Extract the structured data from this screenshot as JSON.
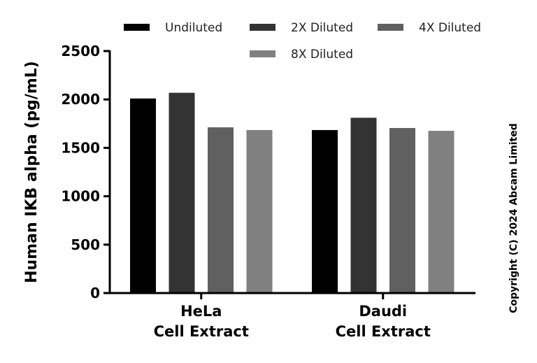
{
  "chart_data": {
    "type": "bar",
    "title": "",
    "xlabel": "",
    "ylabel": "Human IKB alpha (pg/mL)",
    "ylim": [
      0,
      2500
    ],
    "yticks": [
      "0",
      "500",
      "1000",
      "1500",
      "2000",
      "2500"
    ],
    "categories": [
      [
        "HeLa",
        "Cell Extract"
      ],
      [
        "Daudi",
        "Cell Extract"
      ]
    ],
    "series": [
      {
        "name": "Undiluted",
        "color": "#000000",
        "values": [
          2010,
          1684
        ]
      },
      {
        "name": "2X Diluted",
        "color": "#333333",
        "values": [
          2069,
          1811
        ]
      },
      {
        "name": "4X Diluted",
        "color": "#606060",
        "values": [
          1712,
          1705
        ]
      },
      {
        "name": "8X Diluted",
        "color": "#808080",
        "values": [
          1684,
          1676
        ]
      }
    ],
    "legend": "top",
    "grid": false
  },
  "copyright": "Copyright (C) 2024 Abcam Limited"
}
